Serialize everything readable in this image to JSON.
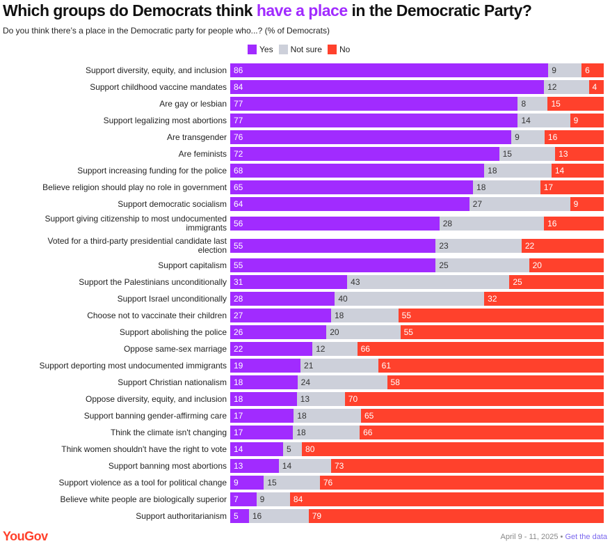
{
  "chart_data": {
    "type": "bar",
    "stacked": true,
    "orientation": "horizontal",
    "title_parts": [
      "Which groups do Democrats think ",
      "have a place",
      " in the Democratic Party?"
    ],
    "subtitle": "Do you think there’s a place in the Democratic party for people who...? (% of Democrats)",
    "legend": [
      {
        "name": "Yes",
        "color": "#a12bff"
      },
      {
        "name": "Not sure",
        "color": "#cdd0da"
      },
      {
        "name": "No",
        "color": "#ff412c"
      }
    ],
    "legend_position": "top",
    "categories": [
      "Support diversity, equity, and inclusion",
      "Support childhood vaccine mandates",
      "Are gay or lesbian",
      "Support legalizing most abortions",
      "Are transgender",
      "Are feminists",
      "Support increasing funding for the police",
      "Believe religion should play no role in government",
      "Support democratic socialism",
      "Support giving citizenship to most undocumented immigrants",
      "Voted for a third-party presidential candidate last election",
      "Support capitalism",
      "Support the Palestinians unconditionally",
      "Support Israel unconditionally",
      "Choose not to vaccinate their children",
      "Support abolishing the police",
      "Oppose same-sex marriage",
      "Support deporting most undocumented immigrants",
      "Support Christian nationalism",
      "Oppose diversity, equity, and inclusion",
      "Support banning gender-affirming care",
      "Think the climate isn't changing",
      "Think women shouldn't have the right to vote",
      "Support banning most abortions",
      "Support violence as a tool for political change",
      "Believe white people are biologically superior",
      "Support authoritarianism"
    ],
    "series": [
      {
        "name": "Yes",
        "values": [
          86,
          84,
          77,
          77,
          76,
          72,
          68,
          65,
          64,
          56,
          55,
          55,
          31,
          28,
          27,
          26,
          22,
          19,
          18,
          18,
          17,
          17,
          14,
          13,
          9,
          7,
          5
        ]
      },
      {
        "name": "Not sure",
        "values": [
          9,
          12,
          8,
          14,
          9,
          15,
          18,
          18,
          27,
          28,
          23,
          25,
          43,
          40,
          18,
          20,
          12,
          21,
          24,
          13,
          18,
          18,
          5,
          14,
          15,
          9,
          16
        ]
      },
      {
        "name": "No",
        "values": [
          6,
          4,
          15,
          9,
          16,
          13,
          14,
          17,
          9,
          16,
          22,
          20,
          25,
          32,
          55,
          55,
          66,
          61,
          58,
          70,
          65,
          66,
          80,
          73,
          76,
          84,
          79
        ]
      }
    ]
  },
  "footer": {
    "logo": "YouGov",
    "date": "April 9 - 11, 2025 • ",
    "link": "Get the data"
  }
}
